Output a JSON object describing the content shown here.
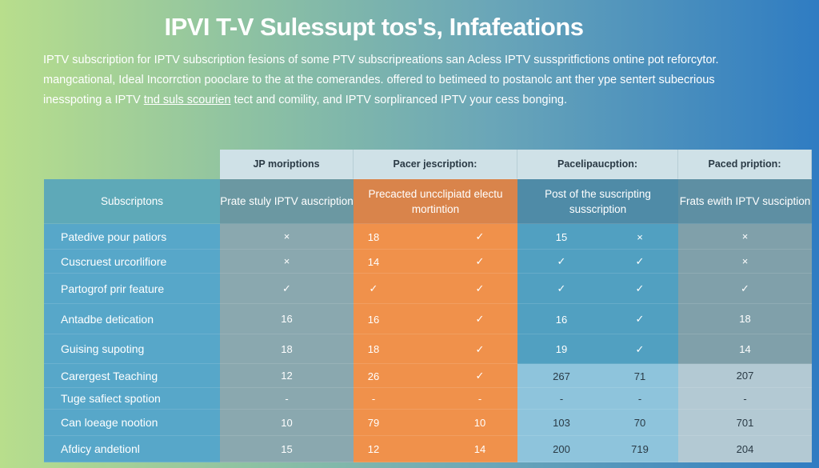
{
  "title": "IPVI T-V Sulessupt tos's, Infafeations",
  "description": {
    "line1": "IPTV subscription for IPTV subscription fesions of some PTV subscripreations san Acless IPTV susspritfictions ontine pot reforcytor.",
    "line2": "mangcational, Ideal Incorrction pooclare to the at the comerandes. offered to betimeed to postanolc ant ther ype sentert subecrious",
    "line3a": "inesspoting a IPTV ",
    "line3link": "tnd suls scourien",
    "line3b": " tect and comility, and IPTV sorpliranced IPTV your cess bonging."
  },
  "table": {
    "top_headers": [
      "JP moriptions",
      "Pacer jescription:",
      "Pacelipaucption:",
      "Paced pription:"
    ],
    "label_header": "Subscriptons",
    "col_headers": [
      "Prate stuly IPTV auscription",
      "Precacted uncclipiatd electu mortintion",
      "Post of the suscripting susscription",
      "Frats ewith IPTV susciption"
    ],
    "rows": [
      {
        "label": "Patedive pour patiors",
        "c1": "×",
        "c2a": "18",
        "c2b": "✓",
        "c3a": "15",
        "c3b": "×",
        "c4": "×"
      },
      {
        "label": "Cuscruest urcorlifiore",
        "c1": "×",
        "c2a": "14",
        "c2b": "✓",
        "c3a": "✓",
        "c3b": "✓",
        "c4": "×"
      },
      {
        "label": "Partogrof prir feature",
        "c1": "✓",
        "c2a": "✓",
        "c2b": "✓",
        "c3a": "✓",
        "c3b": "✓",
        "c4": "✓"
      },
      {
        "label": "Antadbe detication",
        "c1": "16",
        "c2a": "16",
        "c2b": "✓",
        "c3a": "16",
        "c3b": "✓",
        "c4": "18"
      },
      {
        "label": "Guising supoting",
        "c1": "18",
        "c2a": "18",
        "c2b": "✓",
        "c3a": "19",
        "c3b": "✓",
        "c4": "14"
      },
      {
        "label": "Carergest Teaching",
        "c1": "12",
        "c2a": "26",
        "c2b": "✓",
        "c3a": "267",
        "c3b": "71",
        "c4": "207"
      },
      {
        "label": "Tuge safiect spotion",
        "c1": "-",
        "c2a": "-",
        "c2b": "-",
        "c3a": "-",
        "c3b": "-",
        "c4": "-"
      },
      {
        "label": "Can loeage nootion",
        "c1": "10",
        "c2a": "79",
        "c2b": "10",
        "c3a": "103",
        "c3b": "70",
        "c4": "701"
      },
      {
        "label": "Afdicy andetionl",
        "c1": "15",
        "c2a": "12",
        "c2b": "14",
        "c3a": "200",
        "c3b": "719",
        "c4": "204"
      }
    ]
  },
  "colors": {
    "orange": "#f0914b",
    "blue": "#55a5c6",
    "gray": "#8aa8af"
  }
}
